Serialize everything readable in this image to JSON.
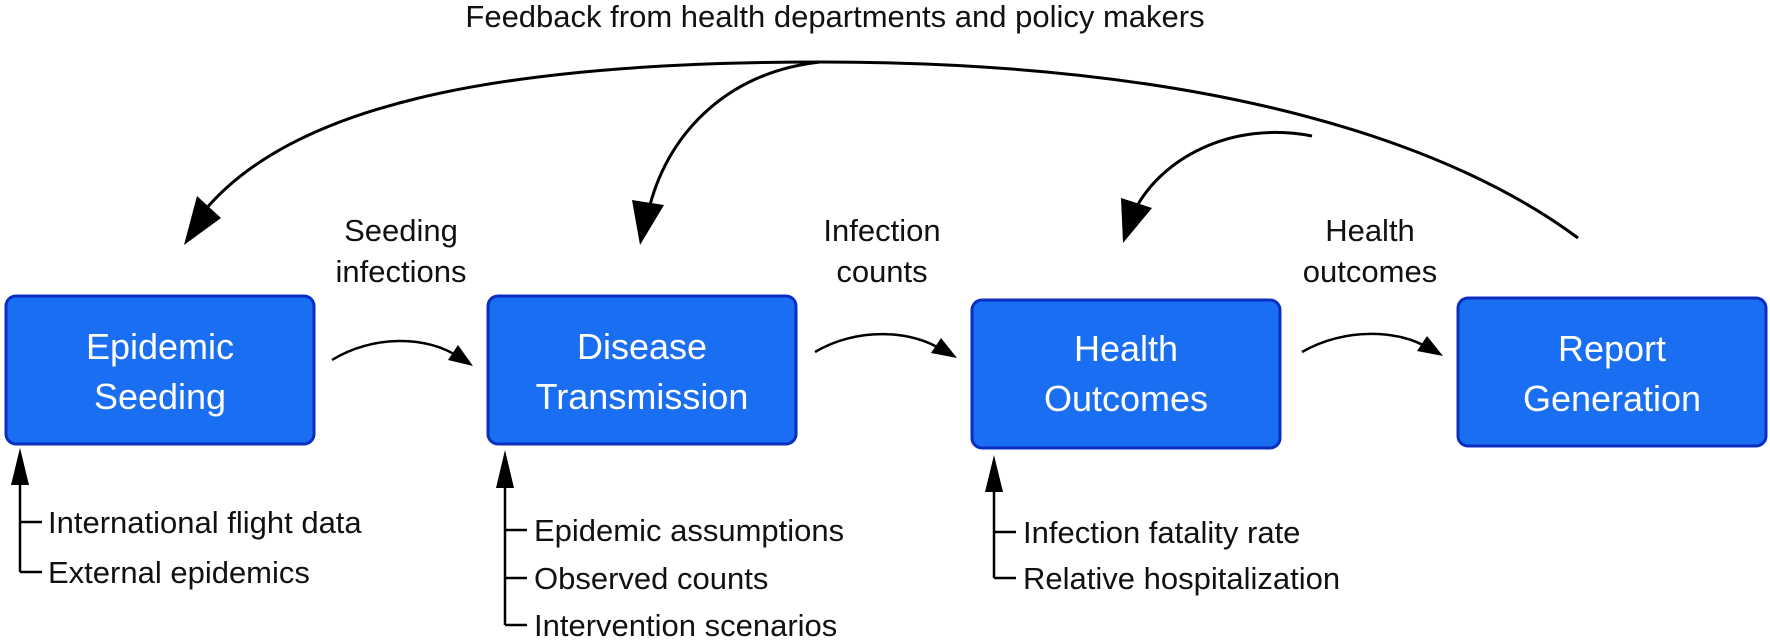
{
  "feedback_label": "Feedback from health departments and policy makers",
  "boxes": [
    {
      "line1": "Epidemic",
      "line2": "Seeding"
    },
    {
      "line1": "Disease",
      "line2": "Transmission"
    },
    {
      "line1": "Health",
      "line2": "Outcomes"
    },
    {
      "line1": "Report",
      "line2": "Generation"
    }
  ],
  "flow_labels": [
    {
      "line1": "Seeding",
      "line2": "infections"
    },
    {
      "line1": "Infection",
      "line2": "counts"
    },
    {
      "line1": "Health",
      "line2": "outcomes"
    }
  ],
  "inputs": [
    [
      "International flight data",
      "External epidemics"
    ],
    [
      "Epidemic assumptions",
      "Observed counts",
      "Intervention scenarios"
    ],
    [
      "Infection fatality rate",
      "Relative hospitalization"
    ]
  ],
  "colors": {
    "box_fill": "#1a6ef2",
    "box_stroke": "#0a2fc0",
    "box_text": "#ffffff",
    "lines": "#000000"
  }
}
